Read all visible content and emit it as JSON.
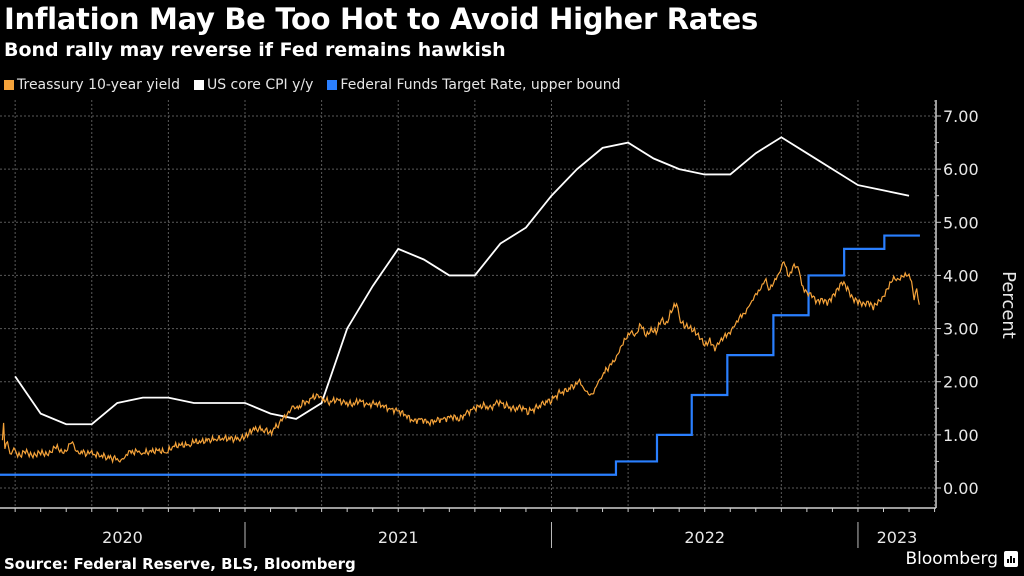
{
  "header": {
    "title": "Inflation May Be Too Hot to Avoid Higher Rates",
    "subtitle": "Bond rally may reverse if Fed remains hawkish"
  },
  "legend": [
    {
      "label": "Treassury 10-year yield",
      "color": "#f5a33a"
    },
    {
      "label": "US core CPI y/y",
      "color": "#ffffff"
    },
    {
      "label": "Federal Funds Target Rate, upper bound",
      "color": "#2a7fff"
    }
  ],
  "footer": {
    "source": "Source: Federal Reserve, BLS, Bloomberg",
    "brand": "Bloomberg",
    "brand_icon": "bloomberg-chart-icon"
  },
  "chart_data": {
    "type": "line",
    "title": "Inflation May Be Too Hot to Avoid Higher Rates",
    "subtitle": "Bond rally may reverse if Fed remains hawkish",
    "xlabel": "",
    "ylabel": "Percent",
    "ylim": [
      0,
      7
    ],
    "y_ticks": [
      "0.00",
      "1.00",
      "2.00",
      "3.00",
      "4.00",
      "5.00",
      "6.00",
      "7.00"
    ],
    "x_range": [
      "2020-03",
      "2023-03"
    ],
    "x_tick_labels": [
      "2020",
      "2021",
      "2022",
      "2023"
    ],
    "grid": true,
    "legend_position": "top-left",
    "x_unit": "months since Jan 2020",
    "series": [
      {
        "name": "Treassury 10-year yield",
        "color": "#f5a33a",
        "points": [
          [
            2.5,
            0.9
          ],
          [
            2.55,
            1.22
          ],
          [
            2.6,
            0.75
          ],
          [
            2.7,
            0.85
          ],
          [
            2.8,
            0.65
          ],
          [
            2.9,
            0.72
          ],
          [
            3.0,
            0.68
          ],
          [
            3.2,
            0.62
          ],
          [
            3.4,
            0.68
          ],
          [
            3.6,
            0.62
          ],
          [
            3.8,
            0.64
          ],
          [
            4.0,
            0.66
          ],
          [
            4.2,
            0.62
          ],
          [
            4.4,
            0.7
          ],
          [
            4.6,
            0.78
          ],
          [
            4.8,
            0.66
          ],
          [
            5.0,
            0.72
          ],
          [
            5.2,
            0.88
          ],
          [
            5.3,
            0.74
          ],
          [
            5.5,
            0.68
          ],
          [
            5.8,
            0.66
          ],
          [
            6.0,
            0.64
          ],
          [
            6.3,
            0.62
          ],
          [
            6.6,
            0.58
          ],
          [
            6.9,
            0.55
          ],
          [
            7.1,
            0.52
          ],
          [
            7.3,
            0.6
          ],
          [
            7.5,
            0.66
          ],
          [
            7.8,
            0.7
          ],
          [
            8.0,
            0.66
          ],
          [
            8.3,
            0.68
          ],
          [
            8.6,
            0.72
          ],
          [
            8.9,
            0.66
          ],
          [
            9.2,
            0.78
          ],
          [
            9.5,
            0.82
          ],
          [
            9.8,
            0.8
          ],
          [
            10.0,
            0.86
          ],
          [
            10.3,
            0.88
          ],
          [
            10.6,
            0.9
          ],
          [
            10.9,
            0.92
          ],
          [
            11.2,
            0.94
          ],
          [
            11.5,
            0.92
          ],
          [
            11.8,
            0.93
          ],
          [
            12.0,
            0.94
          ],
          [
            12.2,
            1.08
          ],
          [
            12.5,
            1.12
          ],
          [
            12.8,
            1.08
          ],
          [
            13.0,
            1.04
          ],
          [
            13.3,
            1.2
          ],
          [
            13.5,
            1.3
          ],
          [
            13.7,
            1.4
          ],
          [
            13.8,
            1.55
          ],
          [
            14.0,
            1.48
          ],
          [
            14.3,
            1.6
          ],
          [
            14.5,
            1.66
          ],
          [
            14.8,
            1.74
          ],
          [
            15.0,
            1.68
          ],
          [
            15.3,
            1.62
          ],
          [
            15.6,
            1.66
          ],
          [
            15.9,
            1.6
          ],
          [
            16.2,
            1.58
          ],
          [
            16.5,
            1.64
          ],
          [
            16.8,
            1.56
          ],
          [
            17.1,
            1.6
          ],
          [
            17.4,
            1.54
          ],
          [
            17.7,
            1.48
          ],
          [
            18.0,
            1.46
          ],
          [
            18.3,
            1.36
          ],
          [
            18.6,
            1.26
          ],
          [
            18.9,
            1.3
          ],
          [
            19.2,
            1.22
          ],
          [
            19.5,
            1.28
          ],
          [
            19.8,
            1.3
          ],
          [
            20.1,
            1.34
          ],
          [
            20.4,
            1.3
          ],
          [
            20.7,
            1.42
          ],
          [
            21.0,
            1.5
          ],
          [
            21.3,
            1.56
          ],
          [
            21.6,
            1.5
          ],
          [
            21.9,
            1.62
          ],
          [
            22.2,
            1.56
          ],
          [
            22.5,
            1.48
          ],
          [
            22.8,
            1.52
          ],
          [
            23.1,
            1.44
          ],
          [
            23.4,
            1.5
          ],
          [
            23.7,
            1.6
          ],
          [
            24.0,
            1.66
          ],
          [
            24.3,
            1.78
          ],
          [
            24.6,
            1.84
          ],
          [
            24.9,
            1.94
          ],
          [
            25.1,
            1.98
          ],
          [
            25.3,
            1.86
          ],
          [
            25.5,
            1.78
          ],
          [
            25.6,
            1.72
          ],
          [
            25.8,
            1.98
          ],
          [
            26.0,
            2.14
          ],
          [
            26.3,
            2.3
          ],
          [
            26.5,
            2.42
          ],
          [
            26.7,
            2.66
          ],
          [
            26.9,
            2.78
          ],
          [
            27.1,
            2.94
          ],
          [
            27.3,
            2.9
          ],
          [
            27.5,
            3.06
          ],
          [
            27.7,
            2.86
          ],
          [
            27.9,
            3.0
          ],
          [
            28.1,
            2.92
          ],
          [
            28.3,
            3.16
          ],
          [
            28.5,
            3.1
          ],
          [
            28.7,
            3.34
          ],
          [
            28.9,
            3.46
          ],
          [
            29.0,
            3.2
          ],
          [
            29.2,
            3.06
          ],
          [
            29.4,
            3.0
          ],
          [
            29.6,
            2.96
          ],
          [
            29.8,
            2.86
          ],
          [
            30.0,
            2.66
          ],
          [
            30.2,
            2.78
          ],
          [
            30.4,
            2.64
          ],
          [
            30.6,
            2.74
          ],
          [
            30.8,
            2.86
          ],
          [
            31.0,
            2.96
          ],
          [
            31.2,
            3.06
          ],
          [
            31.4,
            3.22
          ],
          [
            31.6,
            3.34
          ],
          [
            31.8,
            3.46
          ],
          [
            32.0,
            3.62
          ],
          [
            32.2,
            3.8
          ],
          [
            32.4,
            3.92
          ],
          [
            32.5,
            3.7
          ],
          [
            32.7,
            3.9
          ],
          [
            32.9,
            4.02
          ],
          [
            33.1,
            4.24
          ],
          [
            33.3,
            4.0
          ],
          [
            33.5,
            4.2
          ],
          [
            33.7,
            4.08
          ],
          [
            33.8,
            3.82
          ],
          [
            34.0,
            3.68
          ],
          [
            34.2,
            3.6
          ],
          [
            34.4,
            3.52
          ],
          [
            34.6,
            3.56
          ],
          [
            34.8,
            3.46
          ],
          [
            35.0,
            3.6
          ],
          [
            35.2,
            3.76
          ],
          [
            35.4,
            3.86
          ],
          [
            35.6,
            3.74
          ],
          [
            35.8,
            3.58
          ],
          [
            36.0,
            3.5
          ],
          [
            36.2,
            3.44
          ],
          [
            36.4,
            3.52
          ],
          [
            36.6,
            3.4
          ],
          [
            36.8,
            3.48
          ],
          [
            37.0,
            3.62
          ],
          [
            37.2,
            3.8
          ],
          [
            37.4,
            3.92
          ],
          [
            37.6,
            3.94
          ],
          [
            37.8,
            4.02
          ],
          [
            38.0,
            3.96
          ],
          [
            38.1,
            3.9
          ],
          [
            38.2,
            3.58
          ],
          [
            38.3,
            3.7
          ],
          [
            38.4,
            3.45
          ]
        ]
      },
      {
        "name": "US core CPI y/y",
        "color": "#ffffff",
        "monthly_values": {
          "start_month": "2020-03",
          "values": [
            2.1,
            1.4,
            1.2,
            1.2,
            1.6,
            1.7,
            1.7,
            1.6,
            1.6,
            1.6,
            1.4,
            1.3,
            1.6,
            3.0,
            3.8,
            4.5,
            4.3,
            4.0,
            4.0,
            4.6,
            4.9,
            5.5,
            6.0,
            6.4,
            6.5,
            6.2,
            6.0,
            5.9,
            5.9,
            6.3,
            6.6,
            6.3,
            6.0,
            5.7,
            5.6,
            5.5
          ]
        }
      },
      {
        "name": "Federal Funds Target Rate, upper bound",
        "color": "#2a7fff",
        "steps": [
          {
            "from": "2020-03",
            "value": 0.25
          },
          {
            "from": "2022-03-17",
            "value": 0.5
          },
          {
            "from": "2022-05-05",
            "value": 1.0
          },
          {
            "from": "2022-06-16",
            "value": 1.75
          },
          {
            "from": "2022-07-28",
            "value": 2.5
          },
          {
            "from": "2022-09-22",
            "value": 3.25
          },
          {
            "from": "2022-11-03",
            "value": 4.0
          },
          {
            "from": "2022-12-15",
            "value": 4.5
          },
          {
            "from": "2023-02-02",
            "value": 4.75
          },
          {
            "from": "2023-03-14",
            "value": 4.75
          }
        ]
      }
    ]
  }
}
